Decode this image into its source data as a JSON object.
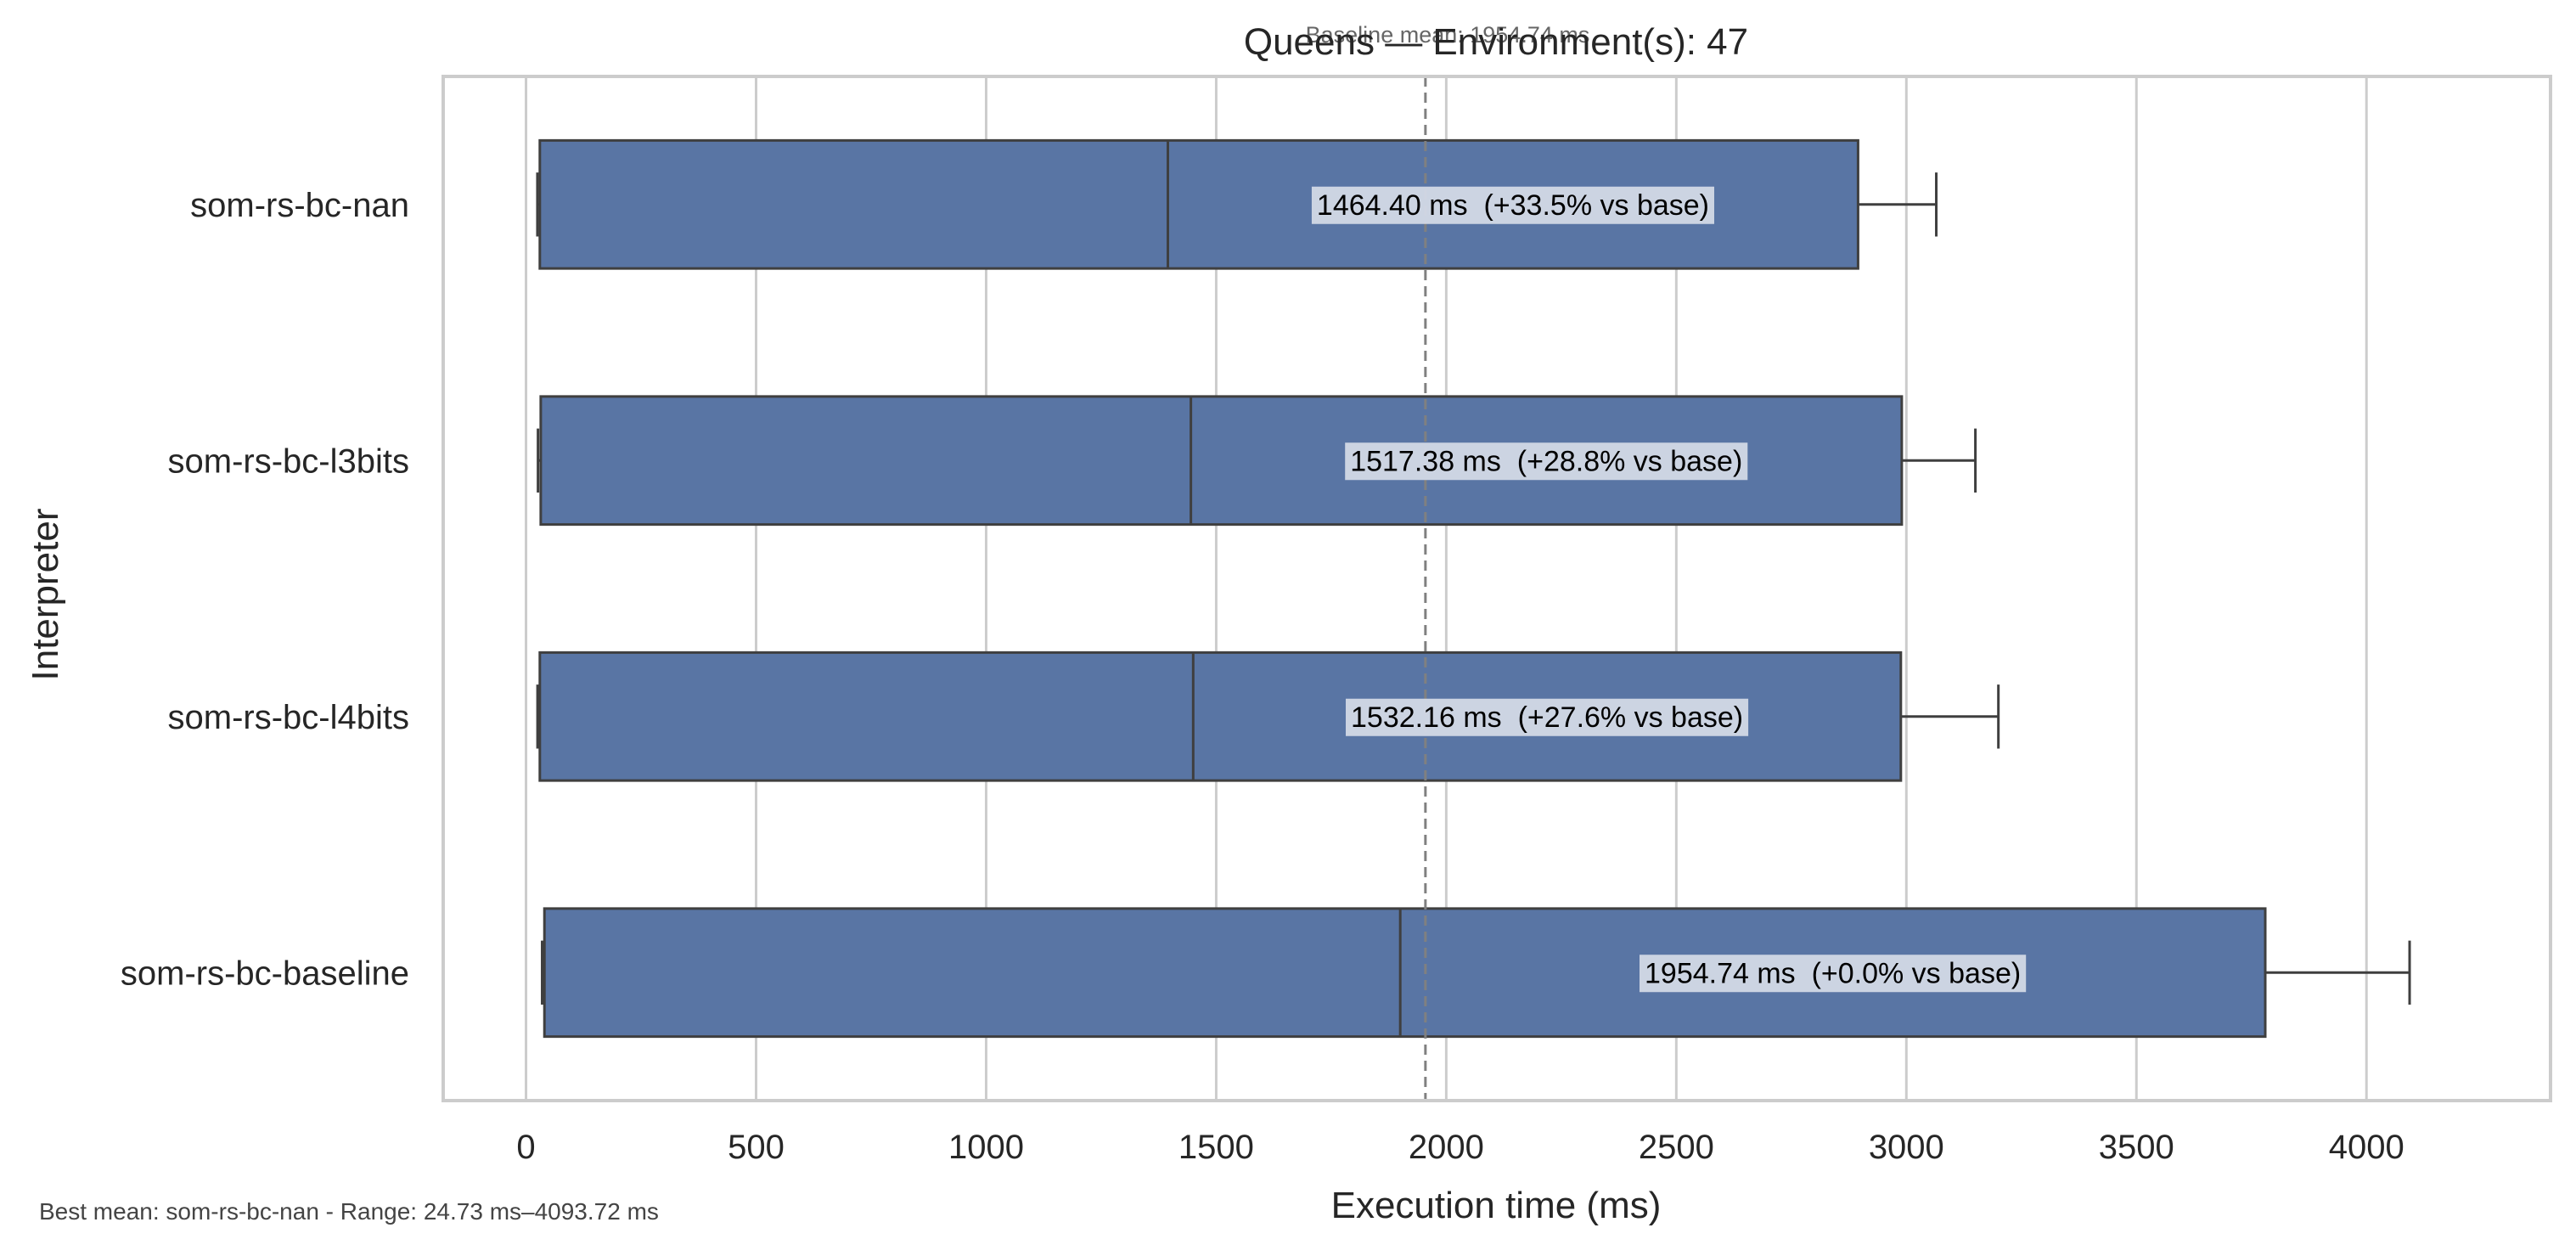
{
  "chart_data": {
    "type": "box",
    "orientation": "horizontal",
    "title": "Queens — Environment(s): 47",
    "baseline_annotation": "Baseline mean: 1954.74 ms",
    "xlabel": "Execution time (ms)",
    "ylabel": "Interpreter",
    "xlim": [
      -180,
      4400
    ],
    "xticks": [
      0,
      500,
      1000,
      1500,
      2000,
      2500,
      3000,
      3500,
      4000
    ],
    "grid": "x",
    "baseline_value": 1954.74,
    "categories": [
      "som-rs-bc-nan",
      "som-rs-bc-l3bits",
      "som-rs-bc-l4bits",
      "som-rs-bc-baseline"
    ],
    "boxes": [
      {
        "name": "som-rs-bc-nan",
        "whisker_low": 24.73,
        "q1": 30,
        "median": 1395,
        "q3": 2895,
        "whisker_high": 3065,
        "label": "1464.40 ms  (+33.5% vs base)"
      },
      {
        "name": "som-rs-bc-l3bits",
        "whisker_low": 26,
        "q1": 32,
        "median": 1445,
        "q3": 2990,
        "whisker_high": 3150,
        "label": "1517.38 ms  (+28.8% vs base)"
      },
      {
        "name": "som-rs-bc-l4bits",
        "whisker_low": 25,
        "q1": 30,
        "median": 1450,
        "q3": 2988,
        "whisker_high": 3200,
        "label": "1532.16 ms  (+27.6% vs base)"
      },
      {
        "name": "som-rs-bc-baseline",
        "whisker_low": 35,
        "q1": 40,
        "median": 1900,
        "q3": 3780,
        "whisker_high": 4093.72,
        "label": "1954.74 ms  (+0.0% vs base)"
      }
    ],
    "colors": {
      "box_fill": "#5975a4",
      "box_edge": "#3f3f3f",
      "grid": "#cccccc",
      "frame": "#cccccc",
      "baseline_line": "#808080",
      "label_bg": "#d3d9e6"
    }
  },
  "footer_note": "Best mean: som-rs-bc-nan - Range: 24.73 ms–4093.72 ms"
}
